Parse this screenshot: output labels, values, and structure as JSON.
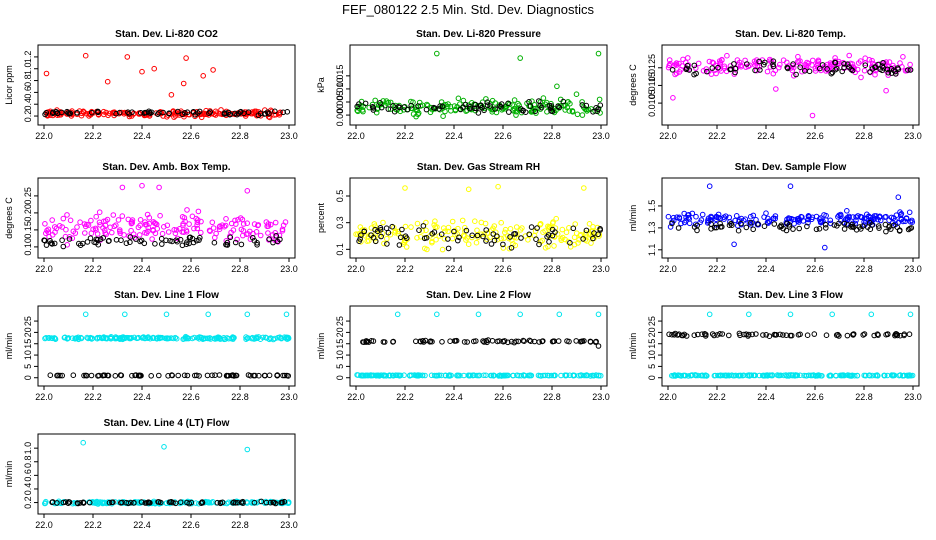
{
  "figure": {
    "title": "FEF_080122  2.5 Min. Std. Dev. Diagnostics"
  },
  "chart_data": [
    {
      "type": "scatter",
      "title": "Stan. Dev. Li-820 CO2",
      "xlabel": "",
      "ylabel": "Licor ppm",
      "xlim": [
        22.0,
        23.0
      ],
      "ylim": [
        0.15,
        1.3
      ],
      "xticks": [
        "22.0",
        "22.2",
        "22.4",
        "22.6",
        "22.8",
        "23.0"
      ],
      "yticks": [
        "0.2",
        "0.4",
        "0.6",
        "0.8",
        "1.0",
        "1.2"
      ],
      "grid": false,
      "series": [
        {
          "name": "primary",
          "color": "#ff0000",
          "base": 0.24,
          "spread": 0.07,
          "outliers": [
            [
              22.01,
              0.92
            ],
            [
              22.17,
              1.22
            ],
            [
              22.26,
              0.78
            ],
            [
              22.34,
              1.2
            ],
            [
              22.4,
              0.95
            ],
            [
              22.45,
              1.0
            ],
            [
              22.52,
              0.56
            ],
            [
              22.57,
              0.75
            ],
            [
              22.58,
              1.18
            ],
            [
              22.65,
              0.88
            ],
            [
              22.69,
              0.98
            ]
          ]
        },
        {
          "name": "secondary",
          "color": "#000000",
          "base": 0.25,
          "spread": 0.05,
          "outliers": []
        }
      ]
    },
    {
      "type": "scatter",
      "title": "Stan. Dev. Li-820 Pressure",
      "xlabel": "",
      "ylabel": "kPa",
      "xlim": [
        22.0,
        23.0
      ],
      "ylim": [
        -0.0015,
        0.0245
      ],
      "xticks": [
        "22.0",
        "22.2",
        "22.4",
        "22.6",
        "22.8",
        "23.0"
      ],
      "yticks": [
        "0.000",
        "0.005",
        "0.010",
        "0.015"
      ],
      "grid": false,
      "series": [
        {
          "name": "primary",
          "color": "#00b000",
          "base": 0.003,
          "spread": 0.004,
          "outliers": [
            [
              22.33,
              0.0235
            ],
            [
              22.67,
              0.0218
            ],
            [
              22.99,
              0.0235
            ],
            [
              22.82,
              0.011
            ],
            [
              22.9,
              0.008
            ]
          ]
        },
        {
          "name": "secondary",
          "color": "#000000",
          "base": 0.003,
          "spread": 0.003,
          "outliers": []
        }
      ]
    },
    {
      "type": "scatter",
      "title": "Stan. Dev. Li-820 Temp.",
      "xlabel": "",
      "ylabel": "degrees C",
      "xlim": [
        22.0,
        23.0
      ],
      "ylim": [
        0.0096,
        0.01345
      ],
      "xticks": [
        "22.0",
        "22.2",
        "22.4",
        "22.6",
        "22.8",
        "23.0"
      ],
      "yticks": [
        "0.0105",
        "0.0115",
        "0.0125"
      ],
      "grid": false,
      "series": [
        {
          "name": "primary",
          "color": "#ff00ff",
          "base": 0.0126,
          "spread": 0.0007,
          "outliers": [
            [
              22.02,
              0.0108
            ],
            [
              22.59,
              0.0098
            ],
            [
              22.44,
              0.0113
            ],
            [
              22.89,
              0.0112
            ]
          ]
        },
        {
          "name": "secondary",
          "color": "#000000",
          "base": 0.0125,
          "spread": 0.0006,
          "outliers": []
        }
      ]
    },
    {
      "type": "scatter",
      "title": "Stan. Dev. Amb. Box Temp.",
      "xlabel": "",
      "ylabel": "degrees C",
      "xlim": [
        22.0,
        23.0
      ],
      "ylim": [
        0.085,
        0.285
      ],
      "xticks": [
        "22.0",
        "22.2",
        "22.4",
        "22.6",
        "22.8",
        "23.0"
      ],
      "yticks": [
        "0.10",
        "0.15",
        "0.20",
        "0.25"
      ],
      "grid": false,
      "series": [
        {
          "name": "primary",
          "color": "#ff00ff",
          "base": 0.155,
          "spread": 0.06,
          "outliers": [
            [
              22.32,
              0.275
            ],
            [
              22.4,
              0.28
            ],
            [
              22.47,
              0.275
            ],
            [
              22.83,
              0.265
            ]
          ]
        },
        {
          "name": "secondary",
          "color": "#000000",
          "base": 0.115,
          "spread": 0.02,
          "outliers": []
        }
      ]
    },
    {
      "type": "scatter",
      "title": "Stan. Dev. Gas Stream RH",
      "xlabel": "",
      "ylabel": "percent",
      "xlim": [
        22.0,
        23.0
      ],
      "ylim": [
        0.08,
        0.59
      ],
      "xticks": [
        "22.0",
        "22.2",
        "22.4",
        "22.6",
        "22.8",
        "23.0"
      ],
      "yticks": [
        "0.1",
        "0.3",
        "0.5"
      ],
      "grid": false,
      "series": [
        {
          "name": "primary",
          "color": "#ffff00",
          "base": 0.22,
          "spread": 0.15,
          "outliers": [
            [
              22.2,
              0.56
            ],
            [
              22.46,
              0.55
            ],
            [
              22.58,
              0.57
            ],
            [
              22.93,
              0.56
            ]
          ]
        },
        {
          "name": "secondary",
          "color": "#000000",
          "base": 0.2,
          "spread": 0.12,
          "outliers": []
        }
      ]
    },
    {
      "type": "scatter",
      "title": "Stan. Dev. Sample Flow",
      "xlabel": "",
      "ylabel": "ml/min",
      "xlim": [
        22.0,
        23.0
      ],
      "ylim": [
        1.08,
        1.7
      ],
      "xticks": [
        "22.0",
        "22.2",
        "22.4",
        "22.6",
        "22.8",
        "23.0"
      ],
      "yticks": [
        "1.1",
        "1.3",
        "1.5"
      ],
      "grid": false,
      "series": [
        {
          "name": "primary",
          "color": "#0000ff",
          "base": 1.38,
          "spread": 0.09,
          "outliers": [
            [
              22.17,
              1.68
            ],
            [
              22.5,
              1.68
            ],
            [
              22.27,
              1.15
            ],
            [
              22.64,
              1.12
            ],
            [
              22.94,
              1.58
            ]
          ]
        },
        {
          "name": "secondary",
          "color": "#000000",
          "base": 1.31,
          "spread": 0.06,
          "outliers": []
        }
      ]
    },
    {
      "type": "scatter",
      "title": "Stan. Dev. Line 1 Flow",
      "xlabel": "",
      "ylabel": "ml/min",
      "xlim": [
        22.0,
        23.0
      ],
      "ylim": [
        -1.0,
        29.0
      ],
      "xticks": [
        "22.0",
        "22.2",
        "22.4",
        "22.6",
        "22.8",
        "23.0"
      ],
      "yticks": [
        "0",
        "5",
        "10",
        "15",
        "20",
        "25"
      ],
      "grid": false,
      "series": [
        {
          "name": "primary",
          "color": "#00e5ee",
          "base": 17.5,
          "spread": 0.8,
          "outliers": [
            [
              22.17,
              28.0
            ],
            [
              22.33,
              28.0
            ],
            [
              22.5,
              28.0
            ],
            [
              22.67,
              28.0
            ],
            [
              22.83,
              28.0
            ],
            [
              22.99,
              28.0
            ]
          ]
        },
        {
          "name": "secondary",
          "color": "#000000",
          "base": 1.0,
          "spread": 0.3,
          "outliers": []
        }
      ]
    },
    {
      "type": "scatter",
      "title": "Stan. Dev. Line 2 Flow",
      "xlabel": "",
      "ylabel": "ml/min",
      "xlim": [
        22.0,
        23.0
      ],
      "ylim": [
        -1.0,
        29.0
      ],
      "xticks": [
        "22.0",
        "22.2",
        "22.4",
        "22.6",
        "22.8",
        "23.0"
      ],
      "yticks": [
        "0",
        "5",
        "10",
        "15",
        "20",
        "25"
      ],
      "grid": false,
      "series": [
        {
          "name": "primary",
          "color": "#00e5ee",
          "base": 1.0,
          "spread": 0.3,
          "outliers": [
            [
              22.17,
              28.0
            ],
            [
              22.33,
              28.0
            ],
            [
              22.5,
              28.0
            ],
            [
              22.67,
              28.0
            ],
            [
              22.83,
              28.0
            ],
            [
              22.99,
              28.0
            ]
          ]
        },
        {
          "name": "secondary",
          "color": "#000000",
          "base": 16.0,
          "spread": 0.7,
          "outliers": [
            [
              22.99,
              14.0
            ]
          ]
        }
      ]
    },
    {
      "type": "scatter",
      "title": "Stan. Dev. Line 3 Flow",
      "xlabel": "",
      "ylabel": "ml/min",
      "xlim": [
        22.0,
        23.0
      ],
      "ylim": [
        -1.0,
        29.0
      ],
      "xticks": [
        "22.0",
        "22.2",
        "22.4",
        "22.6",
        "22.8",
        "23.0"
      ],
      "yticks": [
        "0",
        "5",
        "10",
        "15",
        "20",
        "25"
      ],
      "grid": false,
      "series": [
        {
          "name": "primary",
          "color": "#00e5ee",
          "base": 1.0,
          "spread": 0.3,
          "outliers": [
            [
              22.17,
              28.0
            ],
            [
              22.33,
              28.0
            ],
            [
              22.5,
              28.0
            ],
            [
              22.67,
              28.0
            ],
            [
              22.83,
              28.0
            ],
            [
              22.99,
              28.0
            ]
          ]
        },
        {
          "name": "secondary",
          "color": "#000000",
          "base": 19.0,
          "spread": 0.7,
          "outliers": []
        }
      ]
    },
    {
      "type": "scatter",
      "title": "Stan. Dev. Line 4 (LT) Flow",
      "xlabel": "",
      "ylabel": "ml/min",
      "xlim": [
        22.0,
        23.0
      ],
      "ylim": [
        0.12,
        1.12
      ],
      "xticks": [
        "22.0",
        "22.2",
        "22.4",
        "22.6",
        "22.8",
        "23.0"
      ],
      "yticks": [
        "0.2",
        "0.4",
        "0.6",
        "0.8",
        "1.0"
      ],
      "grid": false,
      "series": [
        {
          "name": "primary",
          "color": "#00e5ee",
          "base": 0.2,
          "spread": 0.025,
          "outliers": [
            [
              22.16,
              1.08
            ],
            [
              22.49,
              1.02
            ],
            [
              22.83,
              0.98
            ]
          ]
        },
        {
          "name": "secondary",
          "color": "#000000",
          "base": 0.2,
          "spread": 0.02,
          "outliers": []
        }
      ]
    }
  ]
}
